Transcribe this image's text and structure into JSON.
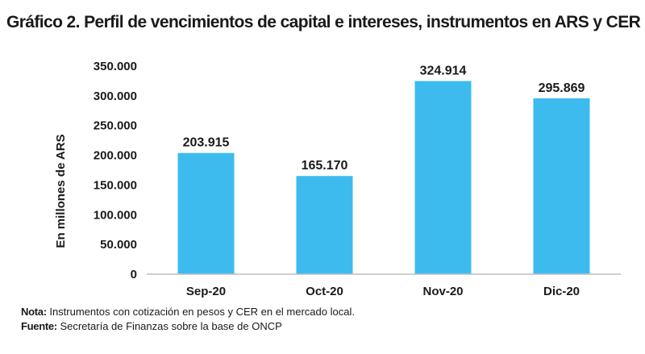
{
  "title": "Gráfico 2. Perfil de vencimientos de capital e intereses, instrumentos en ARS y CER",
  "chart_data": {
    "type": "bar",
    "categories": [
      "Sep-20",
      "Oct-20",
      "Nov-20",
      "Dic-20"
    ],
    "values": [
      203915,
      165170,
      324914,
      295869
    ],
    "value_labels": [
      "203.915",
      "165.170",
      "324.914",
      "295.869"
    ],
    "ylabel": "En millones de ARS",
    "xlabel": "",
    "ylim": [
      0,
      350000
    ],
    "yticks": [
      0,
      50000,
      100000,
      150000,
      200000,
      250000,
      300000,
      350000
    ],
    "ytick_labels": [
      "0",
      "50.000",
      "100.000",
      "150.000",
      "200.000",
      "250.000",
      "300.000",
      "350.000"
    ],
    "bar_color": "#3dbbee",
    "grid": false,
    "legend": false
  },
  "notes": {
    "nota_label": "Nota:",
    "nota_text": " Instrumentos con cotización en pesos y CER en el mercado local.",
    "fuente_label": "Fuente:",
    "fuente_text": " Secretaría de Finanzas sobre la base de ONCP"
  }
}
